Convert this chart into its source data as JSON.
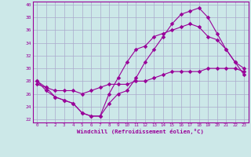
{
  "xlabel": "Windchill (Refroidissement éolien,°C)",
  "background_color": "#cce8e8",
  "grid_color": "#aaaacc",
  "line_color": "#990099",
  "xlim": [
    -0.5,
    23.5
  ],
  "ylim": [
    21.5,
    40.5
  ],
  "yticks": [
    22,
    24,
    26,
    28,
    30,
    32,
    34,
    36,
    38,
    40
  ],
  "xticks": [
    0,
    1,
    2,
    3,
    4,
    5,
    6,
    7,
    8,
    9,
    10,
    11,
    12,
    13,
    14,
    15,
    16,
    17,
    18,
    19,
    20,
    21,
    22,
    23
  ],
  "line1_x": [
    0,
    1,
    2,
    3,
    4,
    5,
    6,
    7,
    8,
    9,
    10,
    11,
    12,
    13,
    14,
    15,
    16,
    17,
    18,
    19,
    20,
    21,
    22,
    23
  ],
  "line1_y": [
    28.0,
    27.0,
    25.5,
    25.0,
    24.5,
    23.0,
    22.5,
    22.5,
    24.5,
    26.0,
    26.5,
    28.5,
    31.0,
    33.0,
    35.0,
    37.0,
    38.5,
    39.0,
    39.5,
    38.0,
    35.5,
    33.0,
    31.0,
    30.0
  ],
  "line2_x": [
    0,
    1,
    2,
    3,
    4,
    5,
    6,
    7,
    8,
    9,
    10,
    11,
    12,
    13,
    14,
    15,
    16,
    17,
    18,
    19,
    20,
    21,
    22,
    23
  ],
  "line2_y": [
    28.0,
    26.5,
    25.5,
    25.0,
    24.5,
    23.0,
    22.5,
    22.5,
    26.0,
    28.5,
    31.0,
    33.0,
    33.5,
    35.0,
    35.5,
    36.0,
    36.5,
    37.0,
    36.5,
    35.0,
    34.5,
    33.0,
    31.0,
    29.0
  ],
  "line3_x": [
    0,
    1,
    2,
    3,
    4,
    5,
    6,
    7,
    8,
    9,
    10,
    11,
    12,
    13,
    14,
    15,
    16,
    17,
    18,
    19,
    20,
    21,
    22,
    23
  ],
  "line3_y": [
    27.5,
    27.0,
    26.5,
    26.5,
    26.5,
    26.0,
    26.5,
    27.0,
    27.5,
    27.5,
    27.5,
    28.0,
    28.0,
    28.5,
    29.0,
    29.5,
    29.5,
    29.5,
    29.5,
    30.0,
    30.0,
    30.0,
    30.0,
    29.5
  ]
}
